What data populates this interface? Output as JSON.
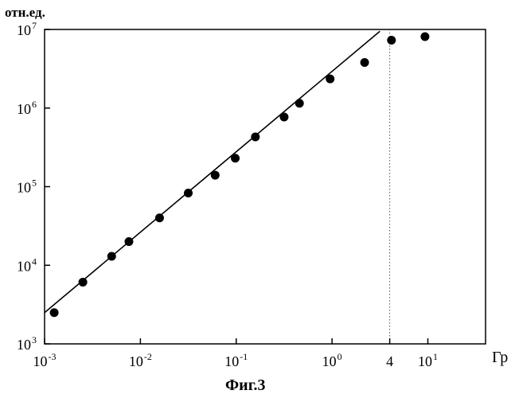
{
  "chart_data": {
    "type": "scatter",
    "ylabel": "отн.ед.",
    "xlabel": "Гр",
    "caption": "Фиг.3",
    "x_scale": "log",
    "y_scale": "log",
    "xlim": [
      0.001,
      40
    ],
    "ylim": [
      1000,
      10000000
    ],
    "grid": false,
    "x_ticks": [
      {
        "value": 0.001,
        "base": "10",
        "exp": "-3"
      },
      {
        "value": 0.01,
        "base": "10",
        "exp": "-2"
      },
      {
        "value": 0.1,
        "base": "10",
        "exp": "-1"
      },
      {
        "value": 1,
        "base": "10",
        "exp": "0"
      },
      {
        "value": 4,
        "base": "4",
        "exp": ""
      },
      {
        "value": 10,
        "base": "10",
        "exp": "1"
      }
    ],
    "y_ticks": [
      {
        "value": 1000,
        "base": "10",
        "exp": "3"
      },
      {
        "value": 10000,
        "base": "10",
        "exp": "4"
      },
      {
        "value": 100000,
        "base": "10",
        "exp": "5"
      },
      {
        "value": 1000000,
        "base": "10",
        "exp": "6"
      },
      {
        "value": 10000000,
        "base": "10",
        "exp": "7"
      }
    ],
    "points": [
      {
        "x": 0.00126,
        "y": 2500
      },
      {
        "x": 0.00251,
        "y": 6100
      },
      {
        "x": 0.00501,
        "y": 13000
      },
      {
        "x": 0.00759,
        "y": 20000
      },
      {
        "x": 0.01585,
        "y": 40000
      },
      {
        "x": 0.0316,
        "y": 83000
      },
      {
        "x": 0.0603,
        "y": 140000
      },
      {
        "x": 0.0977,
        "y": 230000
      },
      {
        "x": 0.1585,
        "y": 430000
      },
      {
        "x": 0.3162,
        "y": 770000
      },
      {
        "x": 0.4571,
        "y": 1150000
      },
      {
        "x": 0.955,
        "y": 2350000
      },
      {
        "x": 2.188,
        "y": 3800000
      },
      {
        "x": 4.17,
        "y": 7300000
      },
      {
        "x": 9.33,
        "y": 8100000
      }
    ],
    "fit_line": [
      {
        "x": 0.001,
        "y": 2500
      },
      {
        "x": 3.16,
        "y": 9500000
      }
    ],
    "reference_line": {
      "x": 4
    }
  }
}
